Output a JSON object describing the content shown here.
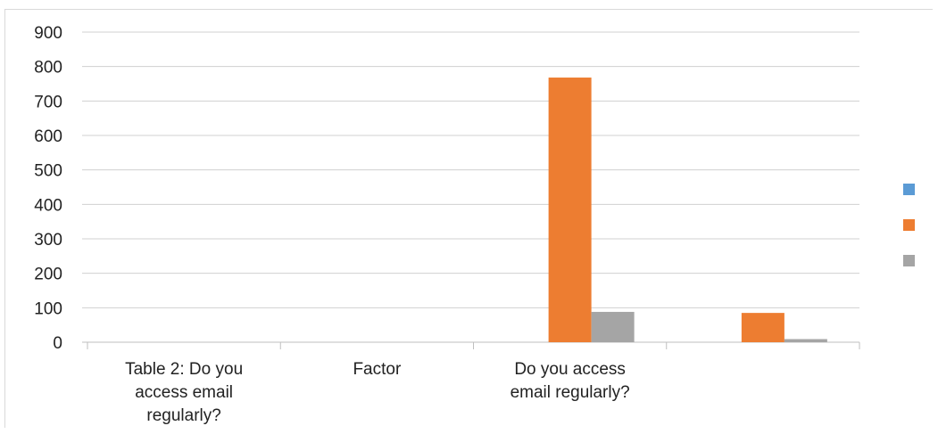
{
  "chart_data": {
    "type": "bar",
    "categories": [
      "Table 2: Do you access email regularly?",
      "Factor",
      "Do you access email regularly?",
      ""
    ],
    "series": [
      {
        "values": [
          0,
          0,
          0,
          0
        ],
        "color": "#5b9bd5"
      },
      {
        "values": [
          0,
          0,
          768,
          85
        ],
        "color": "#ed7d31"
      },
      {
        "values": [
          0,
          0,
          88,
          9
        ],
        "color": "#a5a5a5"
      }
    ],
    "y_ticks": [
      "0",
      "100",
      "200",
      "300",
      "400",
      "500",
      "600",
      "700",
      "800",
      "900"
    ],
    "ylim": [
      0,
      900
    ],
    "grid": true,
    "legend_position": "right"
  }
}
